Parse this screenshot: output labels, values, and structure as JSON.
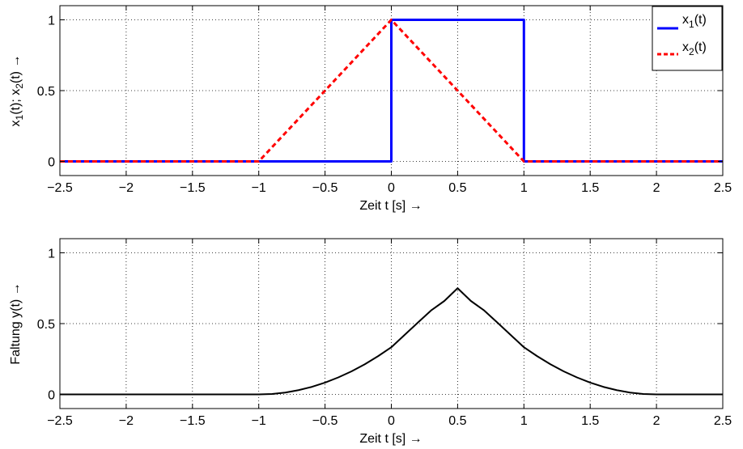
{
  "colors": {
    "x1": "#0000ff",
    "x2": "#ff0000",
    "y": "#000000",
    "grid": "#000000",
    "axes": "#000000"
  },
  "chart_data": [
    {
      "type": "line",
      "xlabel": "Zeit t [s] →",
      "ylabel_parts": [
        "x",
        "1",
        "(t); x",
        "2",
        "(t) →"
      ],
      "xlim": [
        -2.5,
        2.5
      ],
      "ylim": [
        -0.1,
        1.1
      ],
      "xticks": [
        -2.5,
        -2,
        -1.5,
        -1,
        -0.5,
        0,
        0.5,
        1,
        1.5,
        2,
        2.5
      ],
      "xtick_labels": [
        "−2.5",
        "−2",
        "−1.5",
        "−1",
        "−0.5",
        "0",
        "0.5",
        "1",
        "1.5",
        "2",
        "2.5"
      ],
      "yticks": [
        0,
        0.5,
        1
      ],
      "ytick_labels": [
        "0",
        "0.5",
        "1"
      ],
      "grid": true,
      "legend_position": "top-right",
      "series": [
        {
          "name_base": "x",
          "name_sub": "1",
          "name_tail": "(t)",
          "style": "solid",
          "x": [
            -2.5,
            0,
            0,
            1,
            1,
            2.5
          ],
          "y": [
            0,
            0,
            1,
            1,
            0,
            0
          ]
        },
        {
          "name_base": "x",
          "name_sub": "2",
          "name_tail": "(t)",
          "style": "dashed",
          "x": [
            -2.5,
            -1,
            0,
            1,
            2.5
          ],
          "y": [
            0,
            0,
            1,
            0,
            0
          ]
        }
      ]
    },
    {
      "type": "line",
      "xlabel": "Zeit t [s] →",
      "ylabel": "Faltung y(t) →",
      "xlim": [
        -2.5,
        2.5
      ],
      "ylim": [
        -0.1,
        1.1
      ],
      "xticks": [
        -2.5,
        -2,
        -1.5,
        -1,
        -0.5,
        0,
        0.5,
        1,
        1.5,
        2,
        2.5
      ],
      "xtick_labels": [
        "−2.5",
        "−2",
        "−1.5",
        "−1",
        "−0.5",
        "0",
        "0.5",
        "1",
        "1.5",
        "2",
        "2.5"
      ],
      "yticks": [
        0,
        0.5,
        1
      ],
      "ytick_labels": [
        "0",
        "0.5",
        "1"
      ],
      "grid": true,
      "series": [
        {
          "style": "solid",
          "x": [
            -2.5,
            -1.0,
            -0.9,
            -0.8,
            -0.7,
            -0.6,
            -0.5,
            -0.4,
            -0.3,
            -0.2,
            -0.1,
            0.0,
            0.1,
            0.2,
            0.3,
            0.4,
            0.5,
            0.6,
            0.7,
            0.8,
            0.9,
            1.0,
            1.1,
            1.2,
            1.3,
            1.4,
            1.5,
            1.6,
            1.7,
            1.8,
            1.9,
            2.0,
            2.5
          ],
          "y": [
            0,
            0,
            0.003,
            0.013,
            0.03,
            0.053,
            0.083,
            0.12,
            0.163,
            0.213,
            0.27,
            0.333,
            0.42,
            0.507,
            0.593,
            0.66,
            0.75,
            0.66,
            0.593,
            0.507,
            0.42,
            0.333,
            0.27,
            0.213,
            0.163,
            0.12,
            0.083,
            0.053,
            0.03,
            0.013,
            0.003,
            0,
            0
          ]
        }
      ]
    }
  ]
}
